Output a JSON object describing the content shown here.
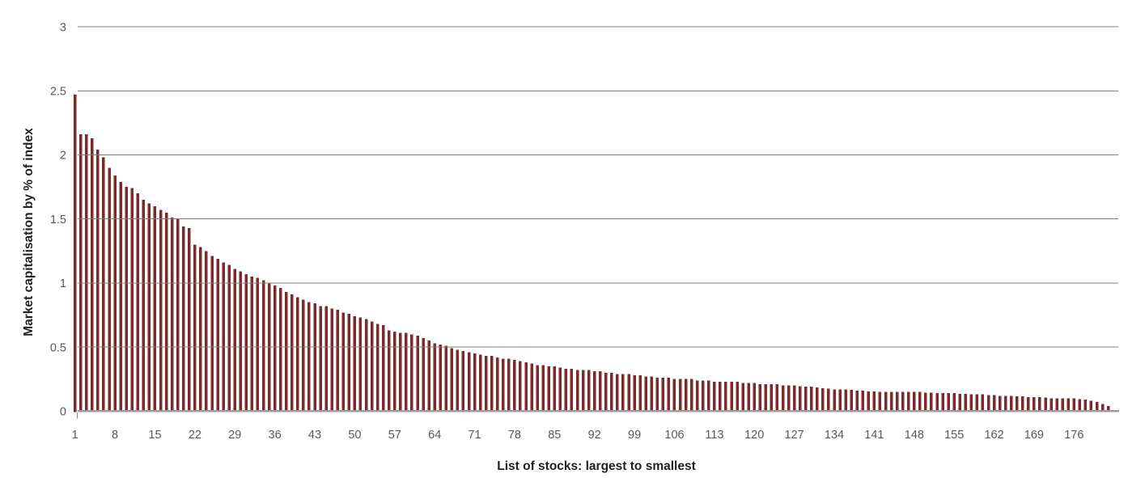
{
  "chart_data": {
    "type": "bar",
    "title": "",
    "xlabel": "List of stocks: largest to smallest",
    "ylabel": "Market capitalisation by % of index",
    "x_description": "Stock rank within index, 1 (largest) to 182 (smallest)",
    "x_tick_labels": [
      1,
      8,
      15,
      22,
      29,
      36,
      43,
      50,
      57,
      64,
      71,
      78,
      85,
      92,
      99,
      106,
      113,
      120,
      127,
      134,
      141,
      148,
      155,
      162,
      169,
      176
    ],
    "y_ticks": [
      0,
      0.5,
      1,
      1.5,
      2,
      2.5,
      3
    ],
    "y_tick_labels": [
      "0",
      "0.5",
      "1",
      "1.5",
      "2",
      "2.5",
      "3"
    ],
    "ylim": [
      0,
      3
    ],
    "grid": "horizontal",
    "legend": "none",
    "values": [
      2.47,
      2.16,
      2.16,
      2.13,
      2.04,
      1.98,
      1.9,
      1.84,
      1.79,
      1.75,
      1.74,
      1.7,
      1.65,
      1.62,
      1.6,
      1.57,
      1.55,
      1.51,
      1.5,
      1.44,
      1.43,
      1.3,
      1.28,
      1.25,
      1.21,
      1.19,
      1.16,
      1.14,
      1.11,
      1.09,
      1.07,
      1.05,
      1.04,
      1.02,
      1.0,
      0.98,
      0.96,
      0.93,
      0.91,
      0.89,
      0.87,
      0.85,
      0.84,
      0.82,
      0.82,
      0.8,
      0.79,
      0.77,
      0.76,
      0.74,
      0.73,
      0.72,
      0.7,
      0.68,
      0.67,
      0.63,
      0.62,
      0.61,
      0.61,
      0.6,
      0.59,
      0.57,
      0.55,
      0.53,
      0.52,
      0.51,
      0.49,
      0.48,
      0.47,
      0.46,
      0.45,
      0.44,
      0.43,
      0.43,
      0.42,
      0.41,
      0.41,
      0.4,
      0.39,
      0.38,
      0.37,
      0.36,
      0.36,
      0.35,
      0.35,
      0.34,
      0.33,
      0.33,
      0.32,
      0.32,
      0.32,
      0.31,
      0.31,
      0.3,
      0.3,
      0.29,
      0.29,
      0.29,
      0.28,
      0.28,
      0.27,
      0.27,
      0.26,
      0.26,
      0.26,
      0.25,
      0.25,
      0.25,
      0.25,
      0.24,
      0.24,
      0.24,
      0.23,
      0.23,
      0.23,
      0.23,
      0.23,
      0.22,
      0.22,
      0.22,
      0.21,
      0.21,
      0.21,
      0.21,
      0.2,
      0.2,
      0.2,
      0.195,
      0.19,
      0.19,
      0.185,
      0.18,
      0.175,
      0.17,
      0.17,
      0.17,
      0.165,
      0.16,
      0.16,
      0.155,
      0.155,
      0.15,
      0.15,
      0.15,
      0.15,
      0.15,
      0.15,
      0.15,
      0.15,
      0.145,
      0.145,
      0.14,
      0.14,
      0.14,
      0.14,
      0.135,
      0.135,
      0.13,
      0.13,
      0.13,
      0.125,
      0.125,
      0.12,
      0.12,
      0.12,
      0.115,
      0.115,
      0.11,
      0.11,
      0.11,
      0.105,
      0.1,
      0.1,
      0.1,
      0.1,
      0.1,
      0.095,
      0.09,
      0.08,
      0.07,
      0.055,
      0.04
    ]
  },
  "colors": {
    "bar": "#7E2A2B",
    "gridline": "#7f7f7f",
    "baseline": "#9c9c9c",
    "tick_text": "#57585a",
    "axis_title_text": "#231f20",
    "background": "#ffffff"
  }
}
